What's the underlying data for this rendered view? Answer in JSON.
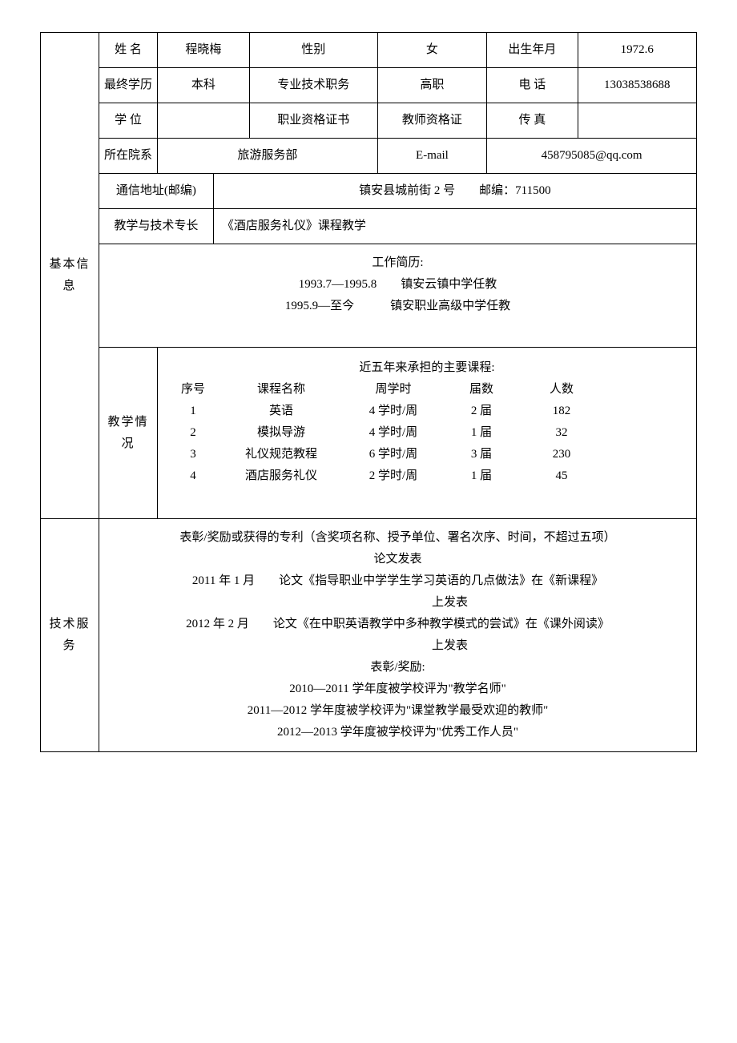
{
  "basic": {
    "section_label": "基本信息",
    "name_label": "姓 名",
    "name": "程晓梅",
    "gender_label": "性别",
    "gender": "女",
    "birth_label": "出生年月",
    "birth": "1972.6",
    "edu_label": "最终学历",
    "edu": "本科",
    "tech_title_label": "专业技术职务",
    "tech_title": "高职",
    "phone_label": "电 话",
    "phone": "13038538688",
    "degree_label": "学 位",
    "degree": "",
    "cert_label": "职业资格证书",
    "cert": "教师资格证",
    "fax_label": "传 真",
    "fax": "",
    "dept_label": "所在院系",
    "dept": "旅游服务部",
    "email_label": "E-mail",
    "email": "458795085@qq.com",
    "addr_label": "通信地址(邮编)",
    "addr": "镇安县城前街 2 号　　邮编：711500",
    "spec_label": "教学与技术专长",
    "spec": "《酒店服务礼仪》课程教学",
    "resume_title": "工作简历:",
    "resume_1": "1993.7—1995.8　　镇安云镇中学任教",
    "resume_2": "1995.9—至今　　　镇安职业高级中学任教"
  },
  "teaching": {
    "section_label": "教学情况",
    "title": "近五年来承担的主要课程:",
    "hdr_no": "序号",
    "hdr_name": "课程名称",
    "hdr_hours": "周学时",
    "hdr_sessions": "届数",
    "hdr_count": "人数",
    "rows": [
      {
        "no": "1",
        "name": "英语",
        "hours": "4 学时/周",
        "sessions": "2 届",
        "count": "182"
      },
      {
        "no": "2",
        "name": "模拟导游",
        "hours": "4 学时/周",
        "sessions": "1 届",
        "count": "32"
      },
      {
        "no": "3",
        "name": "礼仪规范教程",
        "hours": "6 学时/周",
        "sessions": "3 届",
        "count": "230"
      },
      {
        "no": "4",
        "name": "酒店服务礼仪",
        "hours": "2 学时/周",
        "sessions": "1 届",
        "count": "45"
      }
    ]
  },
  "service": {
    "section_label": "技术服务",
    "title": "表彰/奖励或获得的专利（含奖项名称、授予单位、署名次序、时间，不超过五项）",
    "pub_title": "论文发表",
    "pub_1a": "2011 年 1 月　　论文《指导职业中学学生学习英语的几点做法》在《新课程》",
    "pub_1b": "上发表",
    "pub_2a": "2012 年 2 月　　论文《在中职英语教学中多种教学模式的尝试》在《课外阅读》",
    "pub_2b": "上发表",
    "award_title": "表彰/奖励:",
    "award_1": "2010—2011 学年度被学校评为\"教学名师\"",
    "award_2": "2011—2012 学年度被学校评为\"课堂教学最受欢迎的教师\"",
    "award_3": "2012—2013 学年度被学校评为\"优秀工作人员\""
  }
}
